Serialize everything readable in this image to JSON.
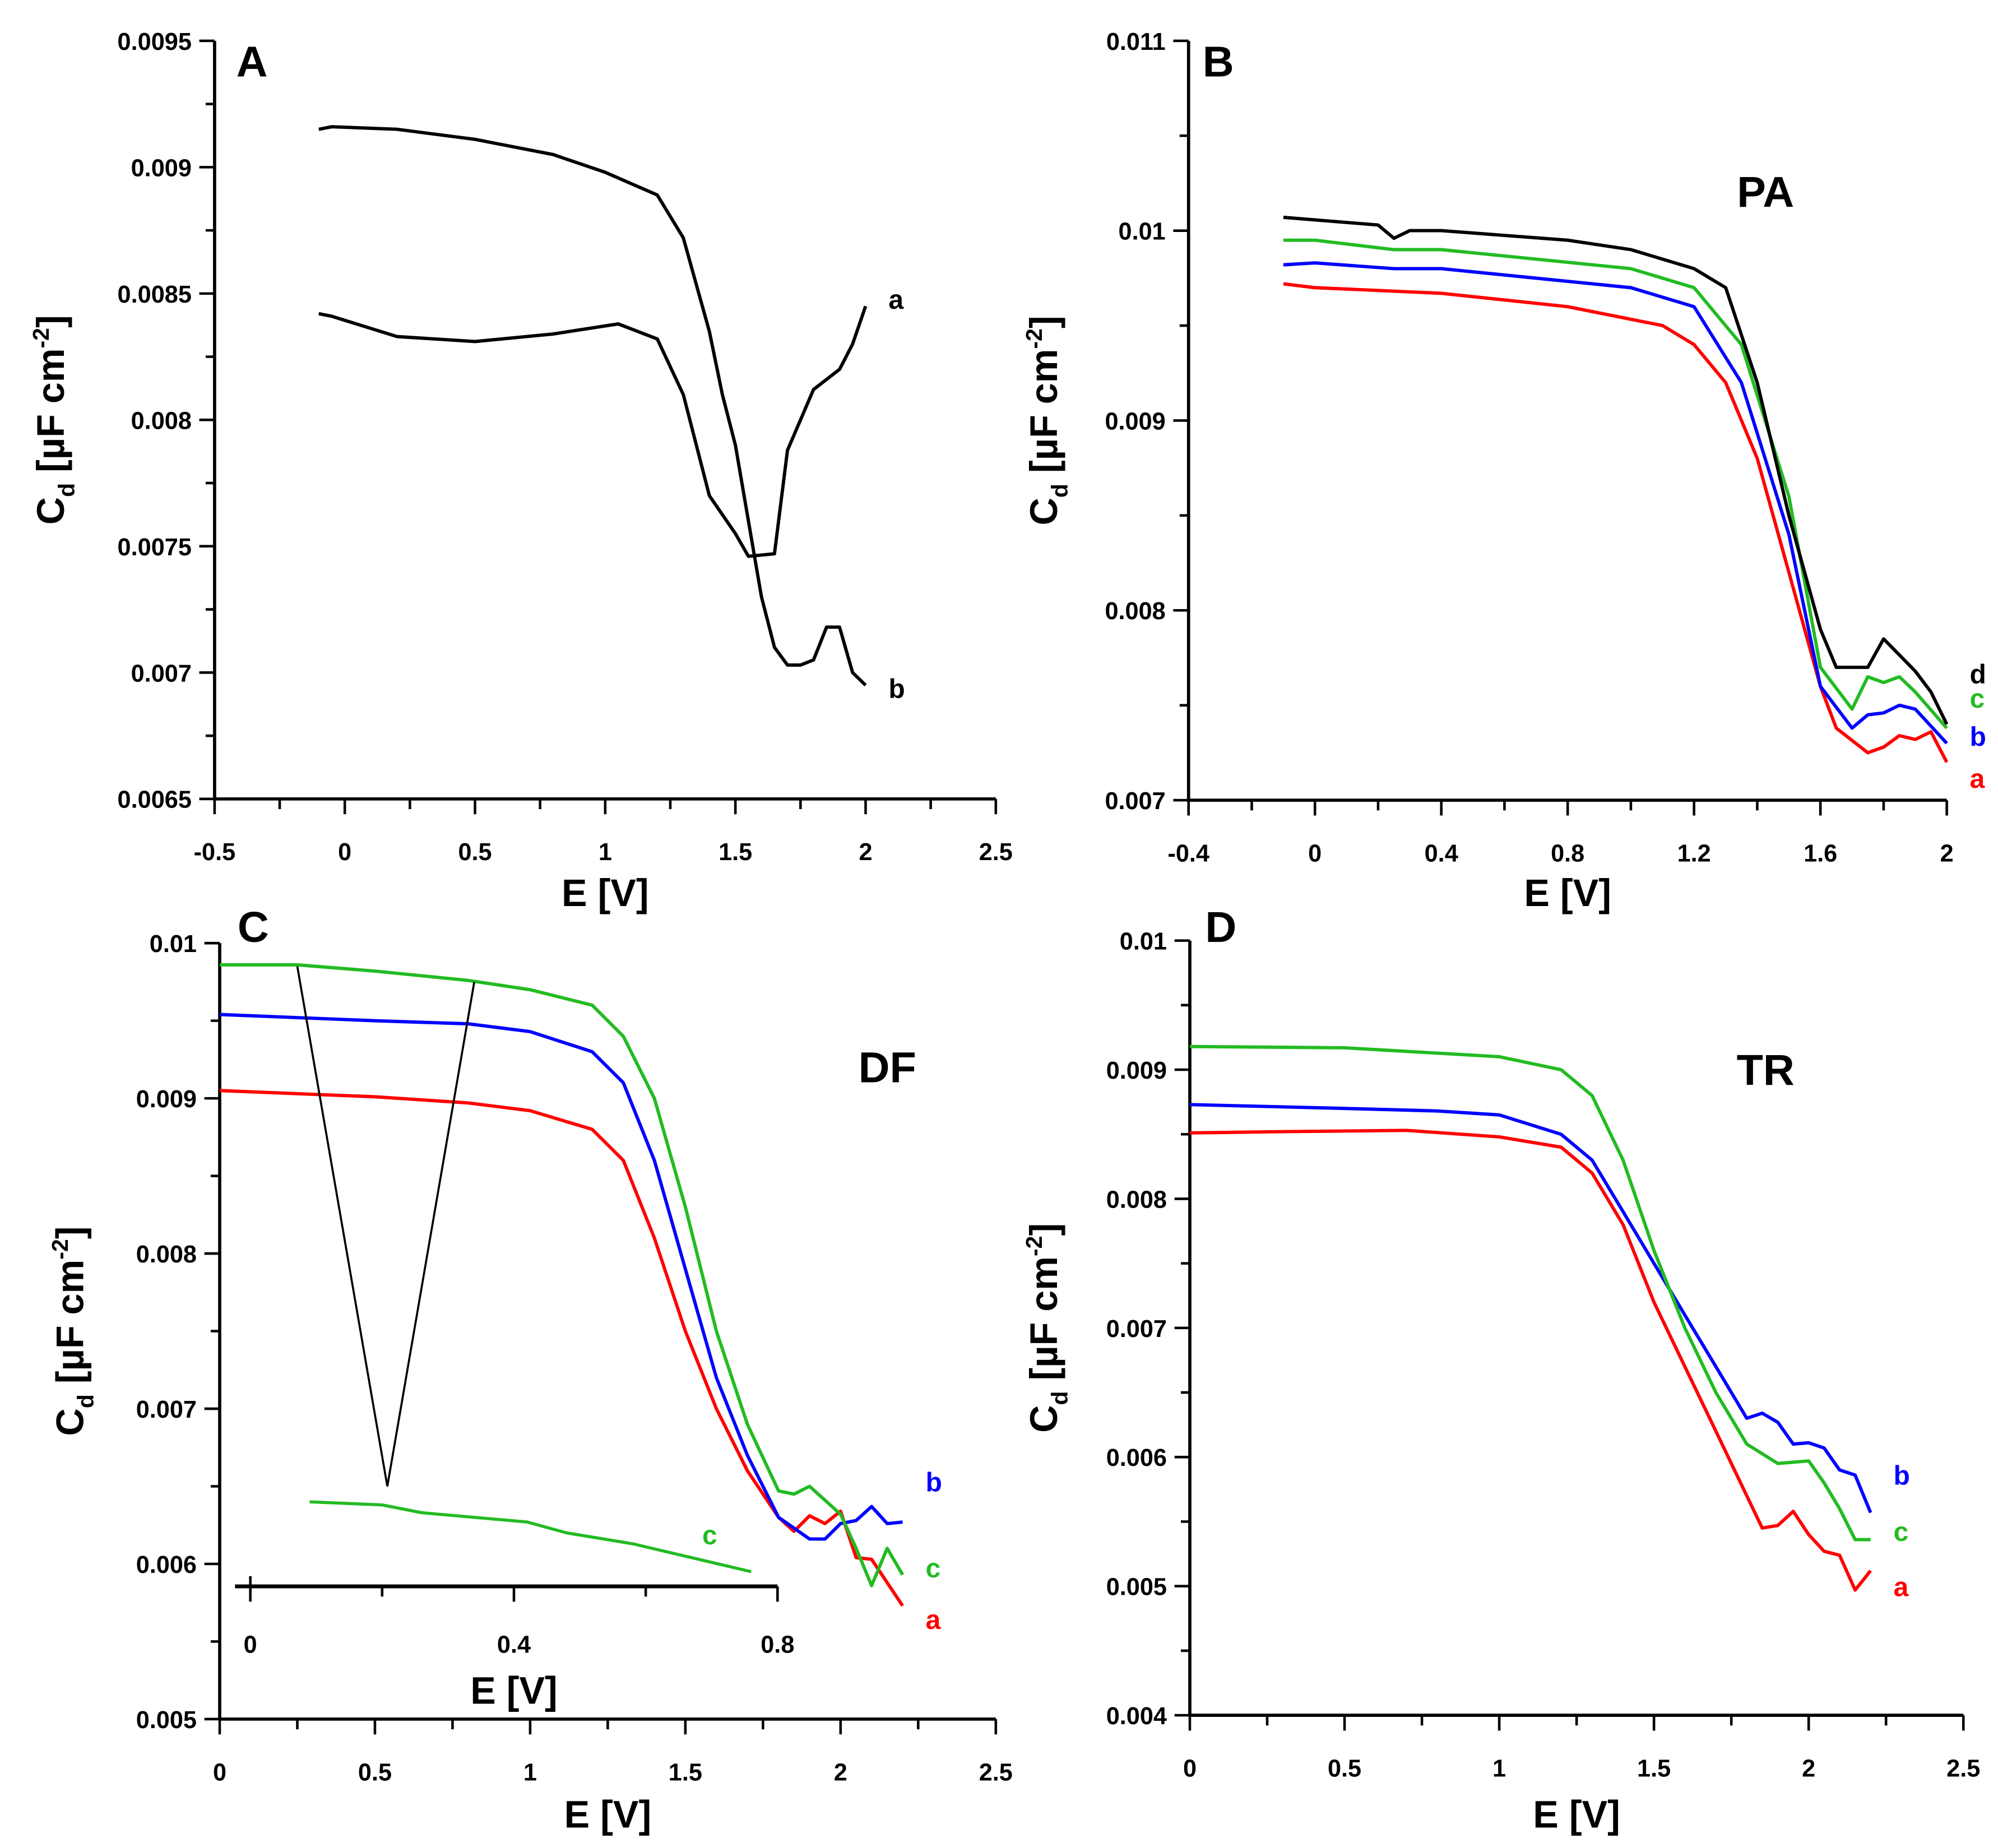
{
  "chart_data": [
    {
      "panel": "A",
      "type": "line",
      "title": "",
      "xlabel": "E [V]",
      "ylabel": "Cd [µF cm-2]",
      "xlim": [
        -0.5,
        2.5
      ],
      "ylim": [
        0.0065,
        0.0095
      ],
      "xticks": [
        "-0.5",
        "0",
        "0.5",
        "1",
        "1.5",
        "2",
        "2.5"
      ],
      "yticks": [
        "0.0065",
        "0.007",
        "0.0075",
        "0.008",
        "0.0085",
        "0.009",
        "0.0095"
      ],
      "series": [
        {
          "name": "a",
          "color": "#000000",
          "x": [
            -0.1,
            -0.05,
            0.2,
            0.5,
            0.8,
            1.05,
            1.2,
            1.3,
            1.4,
            1.5,
            1.55,
            1.65,
            1.7,
            1.8,
            1.9,
            1.95,
            2.0
          ],
          "y": [
            0.00842,
            0.00841,
            0.00833,
            0.00831,
            0.00834,
            0.00838,
            0.00832,
            0.0081,
            0.0077,
            0.00755,
            0.00746,
            0.00747,
            0.00788,
            0.00812,
            0.0082,
            0.0083,
            0.00845
          ]
        },
        {
          "name": "b",
          "color": "#000000",
          "x": [
            -0.1,
            -0.05,
            0.2,
            0.5,
            0.8,
            1.0,
            1.2,
            1.3,
            1.4,
            1.45,
            1.5,
            1.55,
            1.6,
            1.65,
            1.7,
            1.75,
            1.8,
            1.85,
            1.9,
            1.95,
            2.0
          ],
          "y": [
            0.00915,
            0.00916,
            0.00915,
            0.00911,
            0.00905,
            0.00898,
            0.00889,
            0.00872,
            0.00835,
            0.0081,
            0.0079,
            0.0076,
            0.0073,
            0.0071,
            0.00703,
            0.00703,
            0.00705,
            0.00718,
            0.00718,
            0.007,
            0.00695
          ]
        }
      ]
    },
    {
      "panel": "B",
      "type": "line",
      "title": "PA",
      "xlabel": "E [V]",
      "ylabel": "Cd [µF cm-2]",
      "xlim": [
        -0.4,
        2.0
      ],
      "ylim": [
        0.007,
        0.011
      ],
      "xticks": [
        "-0.4",
        "0",
        "0.4",
        "0.8",
        "1.2",
        "1.6",
        "2"
      ],
      "yticks": [
        "0.007",
        "0.008",
        "0.009",
        "0.01",
        "0.011"
      ],
      "series": [
        {
          "name": "a",
          "color": "#ff0000",
          "x": [
            -0.1,
            0,
            0.4,
            0.8,
            1.1,
            1.2,
            1.3,
            1.4,
            1.5,
            1.6,
            1.65,
            1.75,
            1.8,
            1.85,
            1.9,
            1.95,
            2.0
          ],
          "y": [
            0.00972,
            0.0097,
            0.00967,
            0.0096,
            0.0095,
            0.0094,
            0.0092,
            0.0088,
            0.0082,
            0.0076,
            0.00738,
            0.00725,
            0.00728,
            0.00734,
            0.00732,
            0.00736,
            0.0072
          ]
        },
        {
          "name": "b",
          "color": "#0000ff",
          "x": [
            -0.1,
            0,
            0.25,
            0.4,
            1.0,
            1.2,
            1.35,
            1.5,
            1.6,
            1.7,
            1.75,
            1.8,
            1.85,
            1.9,
            2.0
          ],
          "y": [
            0.00982,
            0.00983,
            0.0098,
            0.0098,
            0.0097,
            0.0096,
            0.0092,
            0.0084,
            0.0076,
            0.00738,
            0.00745,
            0.00746,
            0.0075,
            0.00748,
            0.0073
          ]
        },
        {
          "name": "c",
          "color": "#22bb22",
          "x": [
            -0.1,
            0,
            0.25,
            0.4,
            1.0,
            1.2,
            1.35,
            1.5,
            1.6,
            1.7,
            1.75,
            1.8,
            1.85,
            1.9,
            2.0
          ],
          "y": [
            0.00995,
            0.00995,
            0.0099,
            0.0099,
            0.0098,
            0.0097,
            0.0094,
            0.0086,
            0.0077,
            0.00748,
            0.00765,
            0.00762,
            0.00765,
            0.00757,
            0.00738
          ]
        },
        {
          "name": "d",
          "color": "#000000",
          "x": [
            -0.1,
            0.2,
            0.25,
            0.3,
            0.4,
            0.8,
            1.0,
            1.2,
            1.3,
            1.4,
            1.5,
            1.6,
            1.65,
            1.7,
            1.75,
            1.8,
            1.9,
            1.95,
            2.0
          ],
          "y": [
            0.01007,
            0.01003,
            0.00996,
            0.01,
            0.01,
            0.00995,
            0.0099,
            0.0098,
            0.0097,
            0.0092,
            0.0085,
            0.0079,
            0.0077,
            0.0077,
            0.0077,
            0.00785,
            0.00768,
            0.00757,
            0.0074
          ]
        }
      ]
    },
    {
      "panel": "C",
      "type": "line",
      "title": "DF",
      "xlabel": "E [V]",
      "ylabel": "Cd [µF cm-2]",
      "xlim": [
        0,
        2.5
      ],
      "ylim": [
        0.005,
        0.01
      ],
      "xticks": [
        "0",
        "0.5",
        "1",
        "1.5",
        "2",
        "2.5"
      ],
      "yticks": [
        "0.005",
        "0.006",
        "0.007",
        "0.008",
        "0.009",
        "0.01"
      ],
      "series": [
        {
          "name": "a",
          "color": "#ff0000",
          "x": [
            0,
            0.5,
            0.8,
            1.0,
            1.2,
            1.3,
            1.4,
            1.5,
            1.6,
            1.7,
            1.8,
            1.85,
            1.9,
            1.95,
            2.0,
            2.05,
            2.1,
            2.2
          ],
          "y": [
            0.00905,
            0.00901,
            0.00897,
            0.00892,
            0.0088,
            0.0086,
            0.0081,
            0.0075,
            0.007,
            0.0066,
            0.0063,
            0.00621,
            0.00631,
            0.00626,
            0.00634,
            0.00604,
            0.00603,
            0.00573
          ]
        },
        {
          "name": "b",
          "color": "#0000ff",
          "x": [
            0,
            0.5,
            0.8,
            1.0,
            1.2,
            1.3,
            1.4,
            1.5,
            1.6,
            1.7,
            1.8,
            1.9,
            1.95,
            2.0,
            2.05,
            2.1,
            2.15,
            2.2
          ],
          "y": [
            0.00954,
            0.0095,
            0.00948,
            0.00943,
            0.0093,
            0.0091,
            0.0086,
            0.0079,
            0.0072,
            0.0067,
            0.0063,
            0.00616,
            0.00616,
            0.00626,
            0.00628,
            0.00637,
            0.00626,
            0.00627
          ]
        },
        {
          "name": "c",
          "color": "#22bb22",
          "x": [
            0,
            0.25,
            0.5,
            0.8,
            1.0,
            1.2,
            1.3,
            1.4,
            1.5,
            1.6,
            1.7,
            1.8,
            1.85,
            1.9,
            2.0,
            2.05,
            2.1,
            2.15,
            2.2
          ],
          "y": [
            0.00986,
            0.00986,
            0.00982,
            0.00976,
            0.0097,
            0.0096,
            0.0094,
            0.009,
            0.0083,
            0.0075,
            0.0069,
            0.00647,
            0.00645,
            0.0065,
            0.00632,
            0.0061,
            0.00586,
            0.0061,
            0.00593
          ]
        }
      ],
      "inset": {
        "xlabel": "E [V]",
        "xlim": [
          0,
          0.8
        ],
        "xticks": [
          "0",
          "0.4",
          "0.8"
        ],
        "series": {
          "name": "c",
          "color": "#22bb22",
          "x": [
            0.09,
            0.2,
            0.26,
            0.42,
            0.48,
            0.58,
            0.66,
            0.76
          ],
          "y": [
            0.0064,
            0.00638,
            0.00633,
            0.00627,
            0.0062,
            0.00613,
            0.00605,
            0.00595
          ]
        },
        "pointer": {
          "x": [
            0.25,
            0.54,
            0.82
          ],
          "y": [
            0.00985,
            0.0065,
            0.00975
          ]
        }
      }
    },
    {
      "panel": "D",
      "type": "line",
      "title": "TR",
      "xlabel": "E [V]",
      "ylabel": "Cd [µF cm-2]",
      "xlim": [
        0,
        2.5
      ],
      "ylim": [
        0.004,
        0.01
      ],
      "xticks": [
        "0",
        "0.5",
        "1",
        "1.5",
        "2",
        "2.5"
      ],
      "yticks": [
        "0.004",
        "0.005",
        "0.006",
        "0.007",
        "0.008",
        "0.009",
        "0.01"
      ],
      "series": [
        {
          "name": "a",
          "color": "#ff0000",
          "x": [
            0,
            0.3,
            0.7,
            1.0,
            1.2,
            1.3,
            1.4,
            1.5,
            1.6,
            1.7,
            1.8,
            1.85,
            1.9,
            1.95,
            2.0,
            2.05,
            2.1,
            2.15,
            2.2
          ],
          "y": [
            0.00851,
            0.00852,
            0.00853,
            0.00848,
            0.0084,
            0.0082,
            0.0078,
            0.0072,
            0.0067,
            0.0062,
            0.0057,
            0.00545,
            0.00547,
            0.00558,
            0.0054,
            0.00527,
            0.00524,
            0.00497,
            0.00512
          ]
        },
        {
          "name": "b",
          "color": "#0000ff",
          "x": [
            0,
            0.5,
            0.8,
            1.0,
            1.2,
            1.3,
            1.4,
            1.5,
            1.6,
            1.7,
            1.8,
            1.85,
            1.9,
            1.95,
            2.0,
            2.05,
            2.1,
            2.15,
            2.2
          ],
          "y": [
            0.00873,
            0.0087,
            0.00868,
            0.00865,
            0.0085,
            0.0083,
            0.0079,
            0.0075,
            0.0071,
            0.0067,
            0.0063,
            0.00634,
            0.00627,
            0.0061,
            0.00611,
            0.00607,
            0.0059,
            0.00586,
            0.00557
          ]
        },
        {
          "name": "c",
          "color": "#22bb22",
          "x": [
            0,
            0.5,
            1.0,
            1.2,
            1.3,
            1.4,
            1.5,
            1.6,
            1.7,
            1.8,
            1.9,
            2.0,
            2.05,
            2.1,
            2.15,
            2.2
          ],
          "y": [
            0.00918,
            0.00917,
            0.0091,
            0.009,
            0.0088,
            0.0083,
            0.0076,
            0.007,
            0.0065,
            0.0061,
            0.00595,
            0.00597,
            0.0058,
            0.0056,
            0.00536,
            0.00536
          ]
        }
      ]
    }
  ]
}
